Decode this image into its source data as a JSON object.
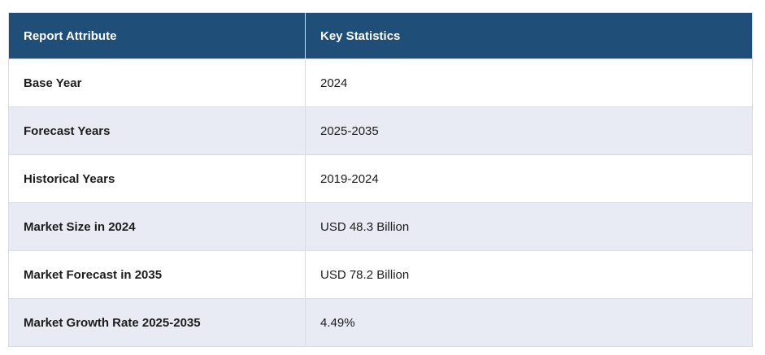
{
  "chart_data": {
    "type": "table",
    "columns": [
      "Report Attribute",
      "Key Statistics"
    ],
    "rows": [
      [
        "Base Year",
        "2024"
      ],
      [
        "Forecast Years",
        "2025-2035"
      ],
      [
        "Historical Years",
        "2019-2024"
      ],
      [
        "Market Size in 2024",
        "USD 48.3 Billion"
      ],
      [
        "Market Forecast in 2035",
        "USD 78.2 Billion"
      ],
      [
        "Market Growth Rate 2025-2035",
        "4.49%"
      ]
    ]
  },
  "colors": {
    "header_bg": "#1F4E79",
    "header_text": "#FFFFFF",
    "row_bg": "#FFFFFF",
    "row_alt_bg": "#E8EAF4",
    "border": "#D9DBE4",
    "body_text": "#1C1C1C"
  }
}
